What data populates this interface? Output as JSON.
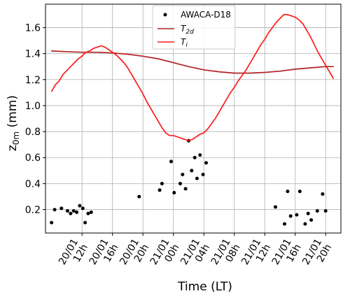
{
  "chart_data": {
    "type": "line",
    "xlabel": "Time (LT)",
    "ylabel": "z",
    "ylabel_sub": "0m",
    "ylabel_unit": " (mm)",
    "x_unit": "hours since 20/01 00h",
    "xlim": [
      7.2,
      46.0
    ],
    "ylim": [
      0.02,
      1.78
    ],
    "grid": true,
    "legend_position": "top-center",
    "x_ticks": [
      {
        "x": 12,
        "label_top": "20/01",
        "label_bottom": "12h"
      },
      {
        "x": 16,
        "label_top": "20/01",
        "label_bottom": "16h"
      },
      {
        "x": 20,
        "label_top": "20/01",
        "label_bottom": "20h"
      },
      {
        "x": 24,
        "label_top": "21/01",
        "label_bottom": "00h"
      },
      {
        "x": 28,
        "label_top": "21/01",
        "label_bottom": "04h"
      },
      {
        "x": 32,
        "label_top": "21/01",
        "label_bottom": "08h"
      },
      {
        "x": 36,
        "label_top": "21/01",
        "label_bottom": "12h"
      },
      {
        "x": 40,
        "label_top": "21/01",
        "label_bottom": "16h"
      },
      {
        "x": 44,
        "label_top": "21/01",
        "label_bottom": "20h"
      }
    ],
    "y_ticks": [
      {
        "y": 0.2,
        "label": "0.2"
      },
      {
        "y": 0.4,
        "label": "0.4"
      },
      {
        "y": 0.6,
        "label": "0.6"
      },
      {
        "y": 0.8,
        "label": "0.8"
      },
      {
        "y": 1.0,
        "label": "1.0"
      },
      {
        "y": 1.2,
        "label": "1.2"
      },
      {
        "y": 1.4,
        "label": "1.4"
      },
      {
        "y": 1.6,
        "label": "1.6"
      }
    ],
    "series": [
      {
        "name": "AWACA-D18",
        "kind": "scatter",
        "color": "#000000",
        "points": [
          [
            8.0,
            0.1
          ],
          [
            8.4,
            0.2
          ],
          [
            9.3,
            0.21
          ],
          [
            10.1,
            0.19
          ],
          [
            10.5,
            0.17
          ],
          [
            10.9,
            0.19
          ],
          [
            11.3,
            0.18
          ],
          [
            11.7,
            0.23
          ],
          [
            12.1,
            0.21
          ],
          [
            12.4,
            0.1
          ],
          [
            12.8,
            0.17
          ],
          [
            13.2,
            0.18
          ],
          [
            19.5,
            0.3
          ],
          [
            22.2,
            0.35
          ],
          [
            22.5,
            0.4
          ],
          [
            23.7,
            0.57
          ],
          [
            24.1,
            0.33
          ],
          [
            24.9,
            0.4
          ],
          [
            25.2,
            0.47
          ],
          [
            25.6,
            0.36
          ],
          [
            26.0,
            0.73
          ],
          [
            26.4,
            0.5
          ],
          [
            26.8,
            0.6
          ],
          [
            27.1,
            0.44
          ],
          [
            27.5,
            0.62
          ],
          [
            27.9,
            0.47
          ],
          [
            28.3,
            0.56
          ],
          [
            37.4,
            0.22
          ],
          [
            38.6,
            0.09
          ],
          [
            39.0,
            0.34
          ],
          [
            39.4,
            0.15
          ],
          [
            40.2,
            0.16
          ],
          [
            40.6,
            0.34
          ],
          [
            41.3,
            0.09
          ],
          [
            41.7,
            0.17
          ],
          [
            42.1,
            0.12
          ],
          [
            42.9,
            0.19
          ],
          [
            43.6,
            0.32
          ],
          [
            44.0,
            0.19
          ]
        ]
      },
      {
        "name": "T",
        "name_sub": "2d",
        "kind": "line",
        "color": "#b22222",
        "points": [
          [
            8.0,
            1.42
          ],
          [
            10,
            1.415
          ],
          [
            12,
            1.41
          ],
          [
            14,
            1.41
          ],
          [
            16,
            1.405
          ],
          [
            18,
            1.395
          ],
          [
            20,
            1.38
          ],
          [
            22,
            1.36
          ],
          [
            24,
            1.33
          ],
          [
            26,
            1.3
          ],
          [
            28,
            1.275
          ],
          [
            30,
            1.26
          ],
          [
            32,
            1.25
          ],
          [
            34,
            1.25
          ],
          [
            36,
            1.255
          ],
          [
            38,
            1.265
          ],
          [
            40,
            1.28
          ],
          [
            42,
            1.29
          ],
          [
            44,
            1.3
          ],
          [
            45.0,
            1.3
          ]
        ]
      },
      {
        "name": "T",
        "name_sub": "i",
        "kind": "line",
        "color": "#ff1a1a",
        "points": [
          [
            8.0,
            1.11
          ],
          [
            8.5,
            1.16
          ],
          [
            9.0,
            1.19
          ],
          [
            9.5,
            1.24
          ],
          [
            10.0,
            1.27
          ],
          [
            10.5,
            1.3
          ],
          [
            11.0,
            1.33
          ],
          [
            11.5,
            1.36
          ],
          [
            12.0,
            1.38
          ],
          [
            12.5,
            1.41
          ],
          [
            13.0,
            1.42
          ],
          [
            13.5,
            1.44
          ],
          [
            14.0,
            1.45
          ],
          [
            14.5,
            1.46
          ],
          [
            15.0,
            1.45
          ],
          [
            15.5,
            1.43
          ],
          [
            16.0,
            1.41
          ],
          [
            16.5,
            1.39
          ],
          [
            17.0,
            1.36
          ],
          [
            17.5,
            1.33
          ],
          [
            18.0,
            1.29
          ],
          [
            18.5,
            1.24
          ],
          [
            19.0,
            1.19
          ],
          [
            19.5,
            1.14
          ],
          [
            20.0,
            1.09
          ],
          [
            20.5,
            1.03
          ],
          [
            21.0,
            0.98
          ],
          [
            21.5,
            0.93
          ],
          [
            22.0,
            0.88
          ],
          [
            22.5,
            0.83
          ],
          [
            23.0,
            0.79
          ],
          [
            23.5,
            0.77
          ],
          [
            24.0,
            0.77
          ],
          [
            24.5,
            0.76
          ],
          [
            25.0,
            0.75
          ],
          [
            25.5,
            0.74
          ],
          [
            26.0,
            0.73
          ],
          [
            26.5,
            0.74
          ],
          [
            27.0,
            0.76
          ],
          [
            27.5,
            0.78
          ],
          [
            28.0,
            0.79
          ],
          [
            28.5,
            0.82
          ],
          [
            29.0,
            0.86
          ],
          [
            29.5,
            0.9
          ],
          [
            30.0,
            0.95
          ],
          [
            30.5,
            1.0
          ],
          [
            31.0,
            1.05
          ],
          [
            31.5,
            1.1
          ],
          [
            32.0,
            1.14
          ],
          [
            32.5,
            1.19
          ],
          [
            33.0,
            1.23
          ],
          [
            33.5,
            1.27
          ],
          [
            34.0,
            1.32
          ],
          [
            34.5,
            1.37
          ],
          [
            35.0,
            1.42
          ],
          [
            35.5,
            1.47
          ],
          [
            36.0,
            1.51
          ],
          [
            36.5,
            1.56
          ],
          [
            37.0,
            1.6
          ],
          [
            37.5,
            1.64
          ],
          [
            38.0,
            1.67
          ],
          [
            38.5,
            1.7
          ],
          [
            39.0,
            1.7
          ],
          [
            39.5,
            1.69
          ],
          [
            40.0,
            1.68
          ],
          [
            40.5,
            1.66
          ],
          [
            41.0,
            1.63
          ],
          [
            41.5,
            1.58
          ],
          [
            42.0,
            1.53
          ],
          [
            42.5,
            1.47
          ],
          [
            43.0,
            1.41
          ],
          [
            43.5,
            1.36
          ],
          [
            44.0,
            1.31
          ],
          [
            44.5,
            1.26
          ],
          [
            45.0,
            1.21
          ]
        ]
      }
    ]
  }
}
